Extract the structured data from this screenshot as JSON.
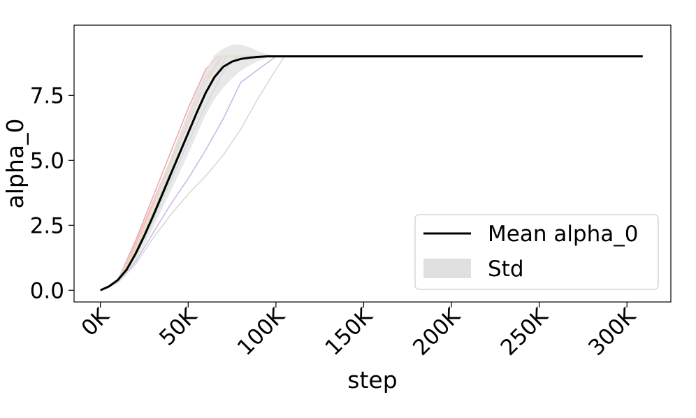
{
  "chart_data": {
    "type": "line",
    "title": "",
    "xlabel": "step",
    "ylabel": "alpha_0",
    "xlim": [
      -15000,
      325000
    ],
    "ylim": [
      -0.45,
      10.2
    ],
    "xticks": [
      0,
      50000,
      100000,
      150000,
      200000,
      250000,
      300000
    ],
    "xtick_labels": [
      "0K",
      "50K",
      "100K",
      "150K",
      "200K",
      "250K",
      "300K"
    ],
    "yticks": [
      0.0,
      2.5,
      5.0,
      7.5
    ],
    "ytick_labels": [
      "0.0",
      "2.5",
      "5.0",
      "7.5"
    ],
    "grid": false,
    "legend": {
      "placement": "bottom-right",
      "entries": [
        {
          "label": "Mean alpha_0",
          "kind": "line",
          "color": "#000000"
        },
        {
          "label": "Std",
          "kind": "band",
          "color": "#e0e0e0"
        }
      ]
    },
    "mean": {
      "x": [
        0,
        5000,
        10000,
        15000,
        20000,
        25000,
        30000,
        35000,
        40000,
        45000,
        50000,
        55000,
        60000,
        65000,
        70000,
        75000,
        80000,
        85000,
        90000,
        95000,
        100000,
        105000,
        110000,
        150000,
        200000,
        250000,
        309000
      ],
      "y": [
        0.0,
        0.15,
        0.4,
        0.8,
        1.4,
        2.1,
        2.85,
        3.65,
        4.45,
        5.25,
        6.05,
        6.85,
        7.6,
        8.2,
        8.6,
        8.8,
        8.9,
        8.95,
        8.98,
        9.0,
        9.0,
        9.0,
        9.0,
        9.0,
        9.0,
        9.0,
        9.0
      ]
    },
    "std_band": {
      "x": [
        0,
        5000,
        10000,
        15000,
        20000,
        25000,
        30000,
        35000,
        40000,
        45000,
        50000,
        55000,
        60000,
        65000,
        70000,
        75000,
        80000,
        85000,
        90000,
        95000,
        100000,
        105000,
        110000,
        150000,
        309000
      ],
      "lower": [
        0.0,
        0.13,
        0.35,
        0.65,
        1.15,
        1.75,
        2.4,
        3.1,
        3.8,
        4.5,
        5.25,
        6.0,
        6.75,
        7.35,
        7.8,
        8.15,
        8.45,
        8.65,
        8.82,
        8.95,
        9.0,
        9.0,
        9.0,
        9.0,
        9.0
      ],
      "upper": [
        0.0,
        0.17,
        0.45,
        0.95,
        1.65,
        2.45,
        3.3,
        4.2,
        5.1,
        6.0,
        6.85,
        7.7,
        8.45,
        9.05,
        9.3,
        9.45,
        9.45,
        9.35,
        9.2,
        9.08,
        9.02,
        9.0,
        9.0,
        9.0,
        9.0
      ]
    },
    "runs": [
      {
        "color": "#f4a6a6",
        "x": [
          0,
          10000,
          20000,
          30000,
          40000,
          50000,
          60000,
          67000,
          100000
        ],
        "y": [
          0.0,
          0.4,
          1.9,
          3.6,
          5.3,
          7.0,
          8.5,
          9.0,
          9.0
        ]
      },
      {
        "color": "#f7c29a",
        "x": [
          0,
          10000,
          20000,
          30000,
          40000,
          50000,
          60000,
          70000,
          100000
        ],
        "y": [
          0.0,
          0.4,
          1.7,
          3.3,
          4.9,
          6.5,
          8.0,
          9.0,
          9.0
        ]
      },
      {
        "color": "#b9d98f",
        "x": [
          0,
          10000,
          20000,
          30000,
          40000,
          50000,
          60000,
          72000,
          100000
        ],
        "y": [
          0.0,
          0.35,
          1.5,
          3.0,
          4.6,
          6.1,
          7.6,
          9.0,
          9.0
        ]
      },
      {
        "color": "#a7cbe8",
        "x": [
          0,
          10000,
          20000,
          30000,
          40000,
          50000,
          60000,
          70000,
          78000,
          100000
        ],
        "y": [
          0.0,
          0.35,
          1.3,
          2.7,
          4.2,
          5.7,
          7.1,
          8.4,
          9.0,
          9.0
        ]
      },
      {
        "color": "#cdb8e6",
        "x": [
          0,
          10000,
          20000,
          30000,
          40000,
          50000,
          60000,
          70000,
          80000,
          100000
        ],
        "y": [
          0.0,
          0.3,
          1.1,
          2.2,
          3.3,
          4.3,
          5.4,
          6.6,
          8.0,
          9.0
        ]
      },
      {
        "color": "#d9d9d9",
        "x": [
          0,
          10000,
          20000,
          30000,
          40000,
          50000,
          60000,
          70000,
          80000,
          90000,
          100000,
          105000,
          309000
        ],
        "y": [
          0.0,
          0.3,
          1.0,
          2.0,
          2.9,
          3.7,
          4.4,
          5.2,
          6.2,
          7.4,
          8.5,
          9.0,
          9.0
        ]
      },
      {
        "color": "#f3c0dc",
        "x": [
          0,
          10000,
          20000,
          30000,
          40000,
          50000,
          60000,
          70000,
          100000
        ],
        "y": [
          0.0,
          0.4,
          1.8,
          3.4,
          5.0,
          6.7,
          8.2,
          9.0,
          9.0
        ]
      },
      {
        "color": "#e8dd9c",
        "x": [
          0,
          10000,
          20000,
          30000,
          40000,
          50000,
          60000,
          68000,
          100000
        ],
        "y": [
          0.0,
          0.38,
          1.6,
          3.2,
          4.8,
          6.4,
          8.0,
          9.0,
          9.0
        ]
      }
    ]
  }
}
